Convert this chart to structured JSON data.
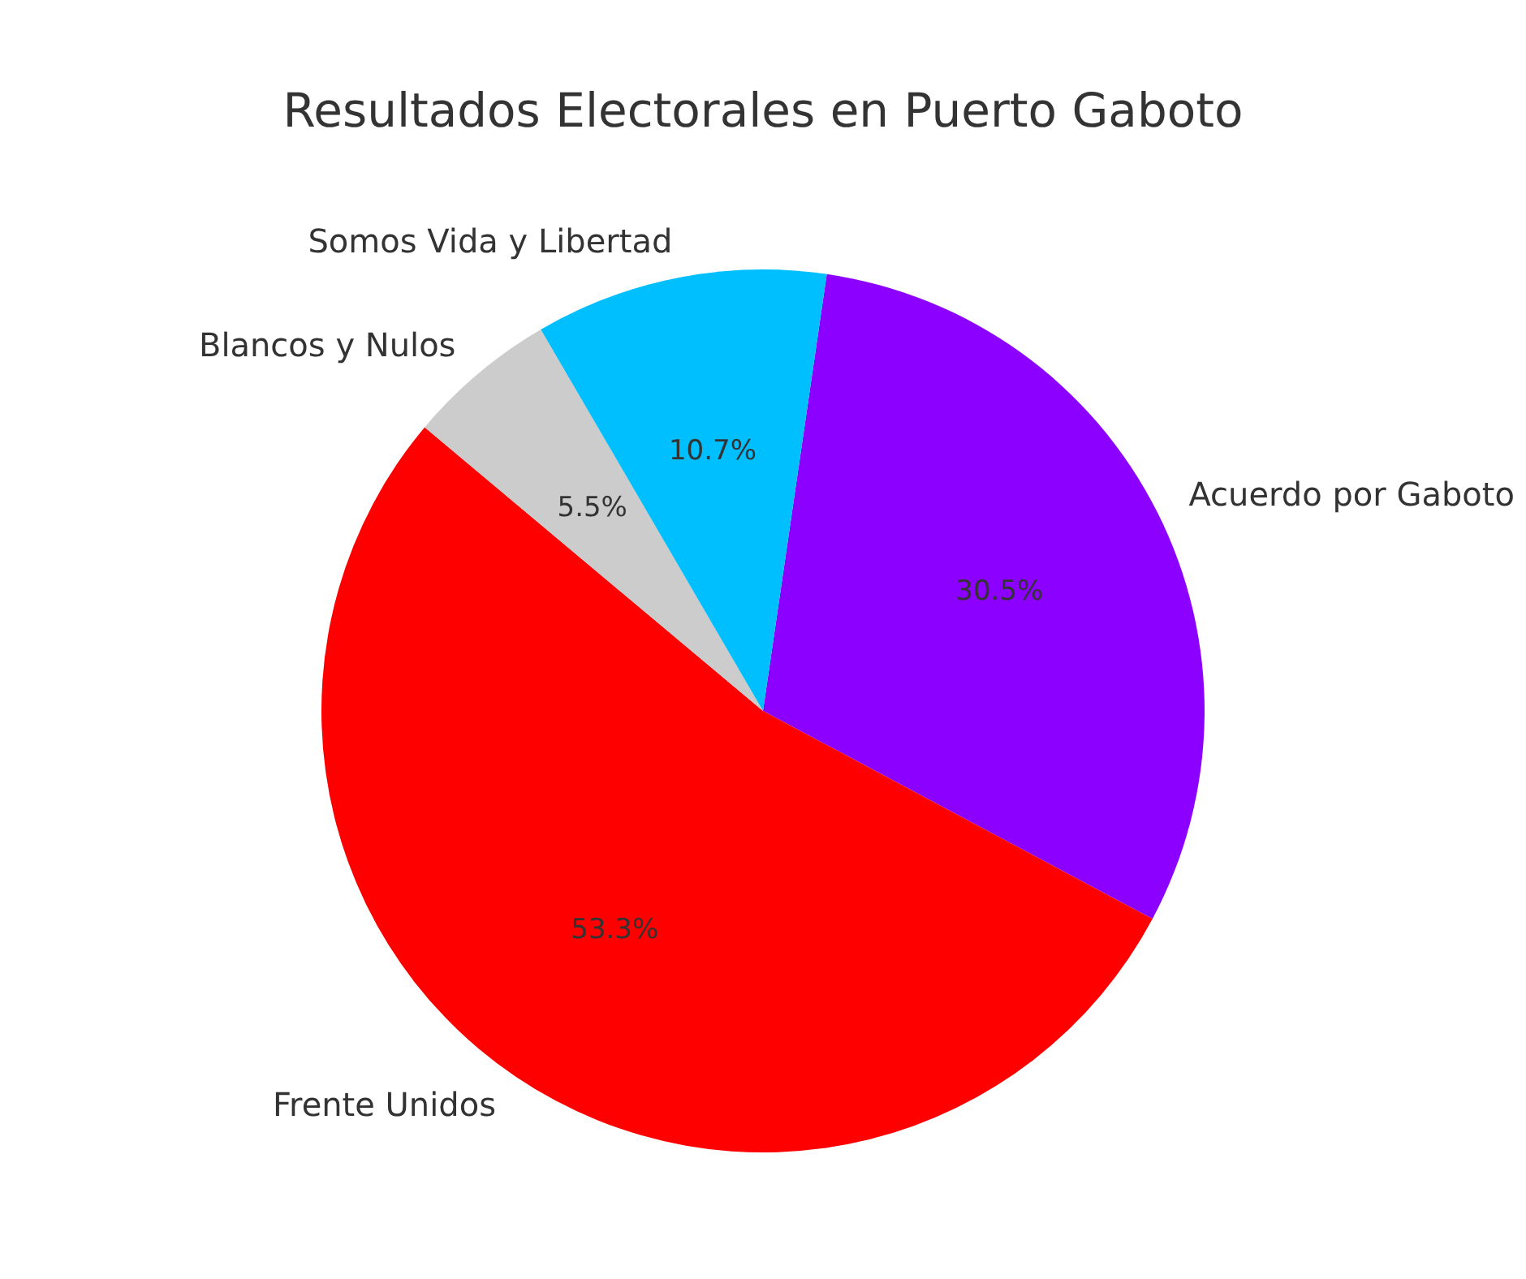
{
  "chart_data": {
    "type": "pie",
    "title": "Resultados Electorales en Puerto Gaboto",
    "categories": [
      "Acuerdo por Gaboto",
      "Frente Unidos",
      "Blancos y Nulos",
      "Somos Vida y Libertad"
    ],
    "values": [
      30.5,
      53.3,
      5.5,
      10.7
    ],
    "value_labels": [
      "30.5%",
      "53.3%",
      "5.5%",
      "10.7%"
    ],
    "colors": [
      "#8b00ff",
      "#ff0000",
      "#cccccc",
      "#00bfff"
    ],
    "legend": false
  }
}
